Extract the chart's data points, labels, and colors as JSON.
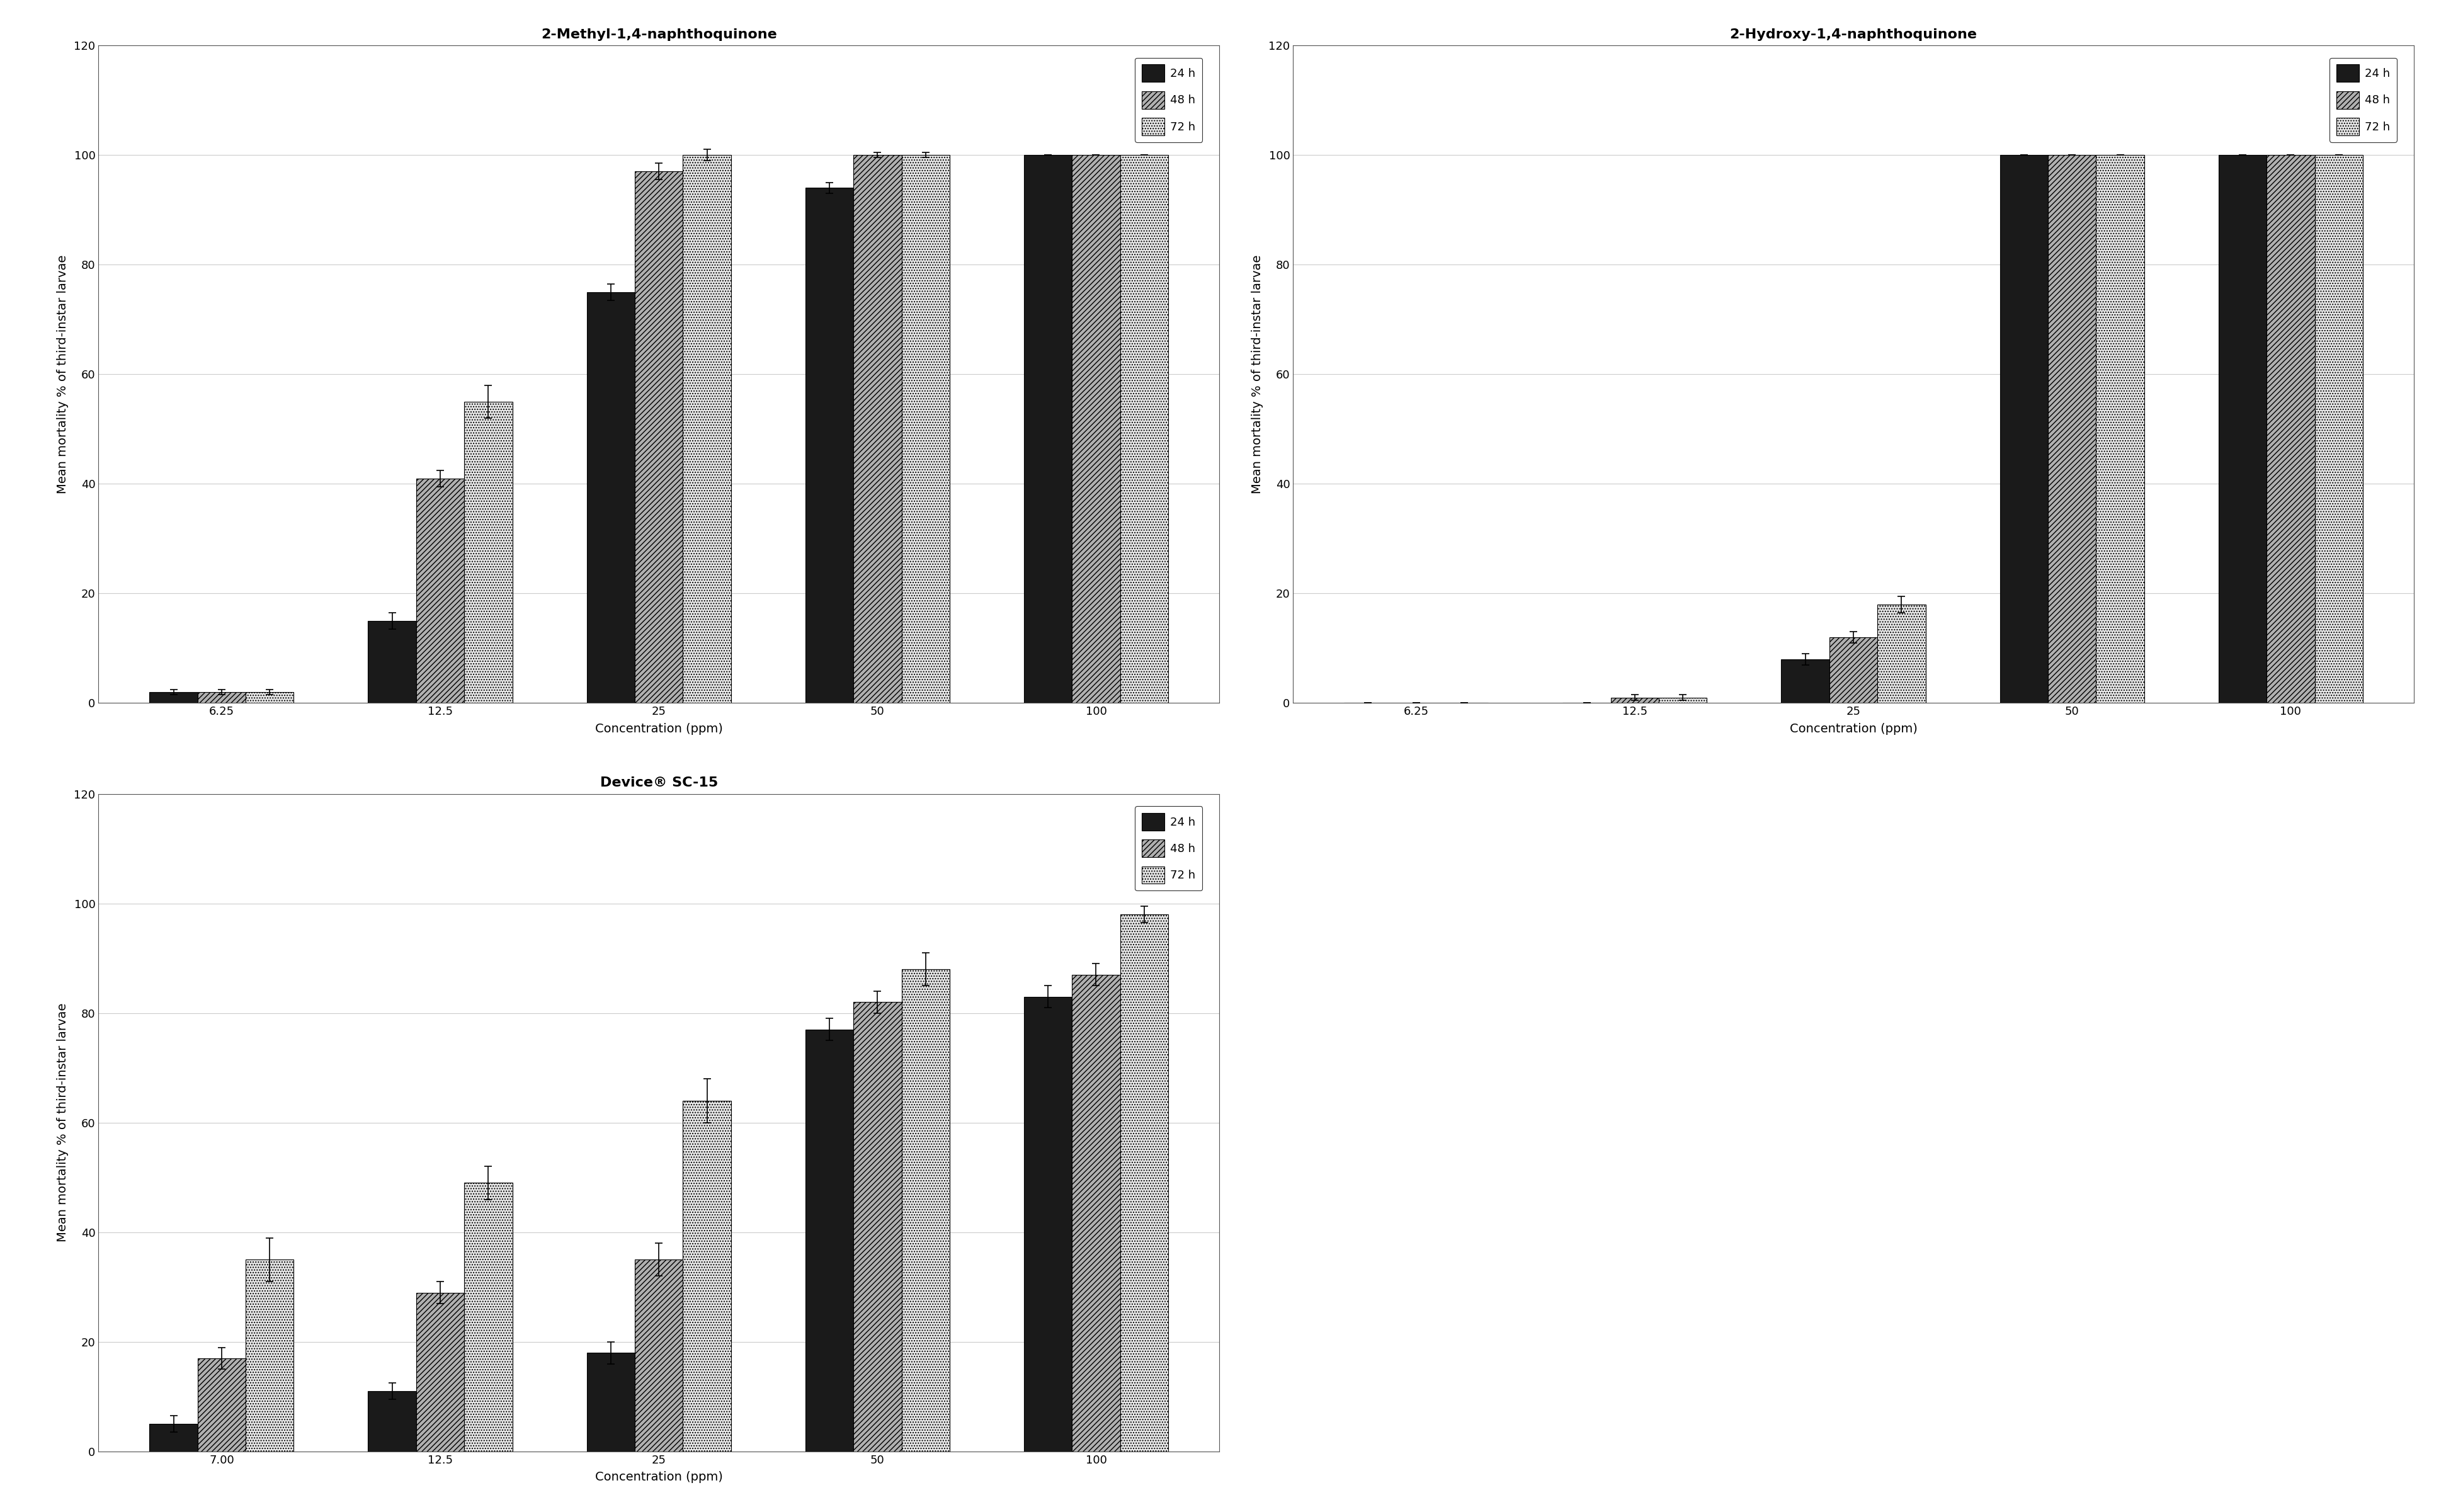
{
  "plot1": {
    "title": "2-Methyl-1,4-naphthoquinone",
    "categories": [
      "6.25",
      "12.5",
      "25",
      "50",
      "100"
    ],
    "bar24": [
      2,
      15,
      75,
      94,
      100
    ],
    "bar48": [
      2,
      41,
      97,
      100,
      100
    ],
    "bar72": [
      2,
      55,
      100,
      100,
      100
    ],
    "err24": [
      0.5,
      1.5,
      1.5,
      1.0,
      0.0
    ],
    "err48": [
      0.5,
      1.5,
      1.5,
      0.5,
      0.0
    ],
    "err72": [
      0.5,
      3.0,
      1.0,
      0.5,
      0.0
    ]
  },
  "plot2": {
    "title": "2-Hydroxy-1,4-naphthoquinone",
    "categories": [
      "6.25",
      "12.5",
      "25",
      "50",
      "100"
    ],
    "bar24": [
      0,
      0,
      8,
      100,
      100
    ],
    "bar48": [
      0,
      1,
      12,
      100,
      100
    ],
    "bar72": [
      0,
      1,
      18,
      100,
      100
    ],
    "err24": [
      0,
      0,
      1.0,
      0,
      0
    ],
    "err48": [
      0,
      0.5,
      1.0,
      0,
      0
    ],
    "err72": [
      0,
      0.5,
      1.5,
      0,
      0
    ]
  },
  "plot3": {
    "title": "Device® SC-15",
    "categories": [
      "7.00",
      "12.5",
      "25",
      "50",
      "100"
    ],
    "bar24": [
      5,
      11,
      18,
      77,
      83
    ],
    "bar48": [
      17,
      29,
      35,
      82,
      87
    ],
    "bar72": [
      35,
      49,
      64,
      88,
      98
    ],
    "err24": [
      1.5,
      1.5,
      2.0,
      2.0,
      2.0
    ],
    "err48": [
      2.0,
      2.0,
      3.0,
      2.0,
      2.0
    ],
    "err72": [
      4.0,
      3.0,
      4.0,
      3.0,
      1.5
    ]
  },
  "ylabel": "Mean mortality % of third-instar larvae",
  "xlabel": "Concentration (ppm)",
  "ylim": [
    0,
    120
  ],
  "yticks": [
    0,
    20,
    40,
    60,
    80,
    100,
    120
  ],
  "legend_labels": [
    "24 h",
    "48 h",
    "72 h"
  ],
  "bar_color_24": "#1a1a1a",
  "bar_color_48": "#b0b0b0",
  "bar_color_72": "#e8e8e8",
  "background_color": "#ffffff",
  "grid_color": "#cccccc",
  "bar_width": 0.22,
  "title_fontsize": 16,
  "label_fontsize": 14,
  "tick_fontsize": 13,
  "legend_fontsize": 13
}
